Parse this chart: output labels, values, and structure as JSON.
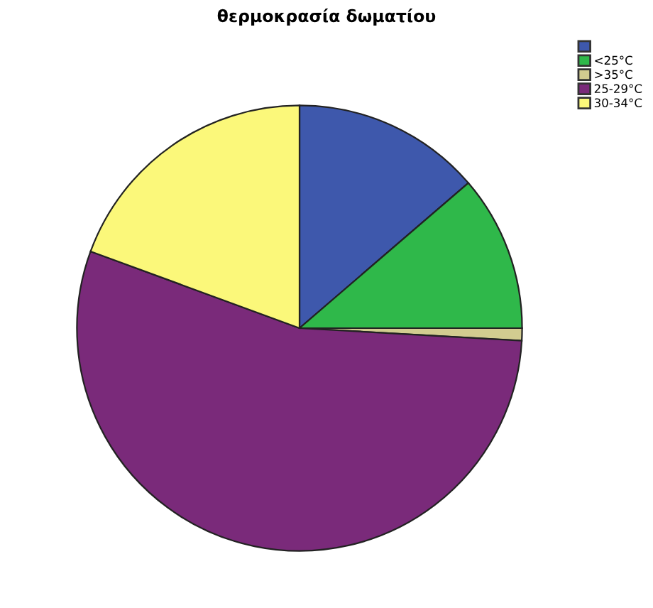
{
  "chart_data": {
    "type": "pie",
    "title": "θερμοκρασία δωματίου",
    "categories": [
      null,
      "<25°C",
      ">35°C",
      "25-29°C",
      "30-34°C"
    ],
    "values": [
      13.7,
      11.3,
      0.9,
      54.7,
      19.4
    ],
    "colors": [
      "#3e58ac",
      "#2fb84a",
      "#d2cc90",
      "#7a2a7a",
      "#fbf87a"
    ],
    "legend": "top right"
  }
}
